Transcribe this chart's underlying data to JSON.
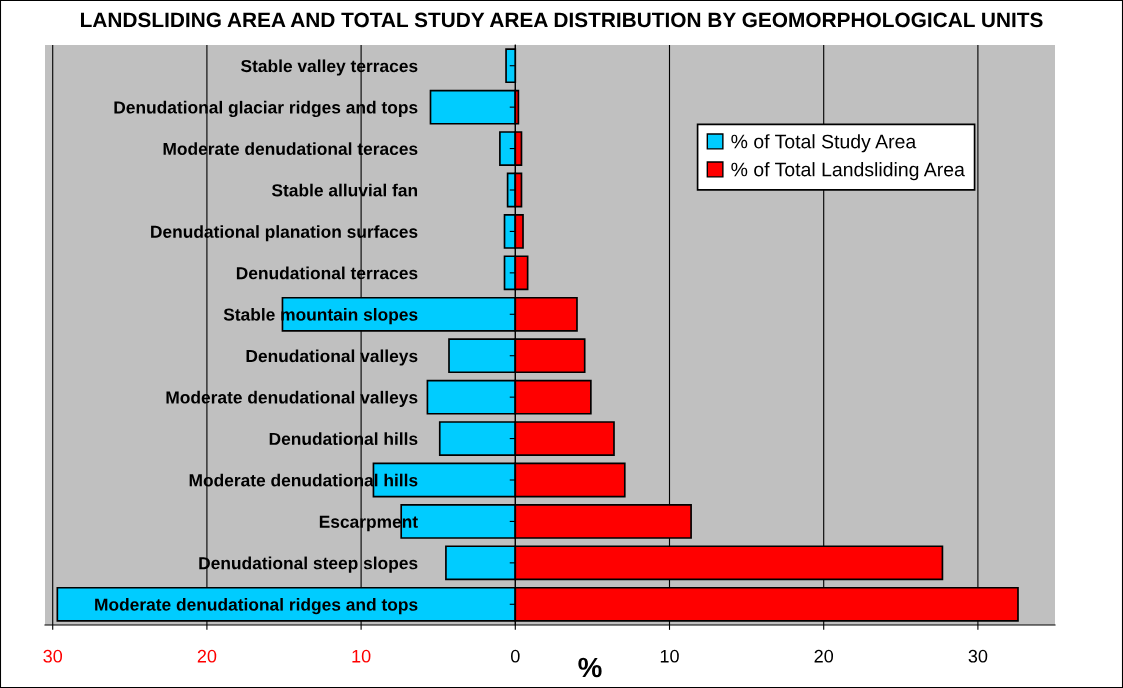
{
  "chart_data": {
    "type": "bar",
    "orientation": "horizontal",
    "title": "LANDSLIDING AREA AND TOTAL STUDY AREA DISTRIBUTION BY GEOMORPHOLOGICAL UNITS",
    "xlabel": "%",
    "categories": [
      "Stable valley terraces",
      "Denudational glaciar ridges and tops",
      "Moderate denudational teraces",
      "Stable alluvial fan",
      "Denudational planation surfaces",
      "Denudational terraces",
      "Stable mountain slopes",
      "Denudational valleys",
      "Moderate denudational valleys",
      "Denudational hills",
      "Moderate denudational hills",
      "Escarpment",
      "Denudational steep slopes",
      "Moderate denudational ridges and tops"
    ],
    "series": [
      {
        "name": "% of Total Study Area",
        "color": "#00ccff",
        "values": [
          -0.6,
          -5.5,
          -1.0,
          -0.5,
          -0.7,
          -0.7,
          -15.1,
          -4.3,
          -5.7,
          -4.9,
          -9.2,
          -7.4,
          -4.5,
          -29.7
        ]
      },
      {
        "name": "% of Total Landsliding Area",
        "color": "#ff0000",
        "values": [
          null,
          0.2,
          0.4,
          0.4,
          0.5,
          0.8,
          4.0,
          4.5,
          4.9,
          6.4,
          7.1,
          11.4,
          27.7,
          32.6
        ]
      }
    ],
    "xlim": [
      -30.5,
      35
    ],
    "xticks": [
      {
        "value": -30,
        "label": "30"
      },
      {
        "value": -20,
        "label": "20"
      },
      {
        "value": -10,
        "label": "10"
      },
      0,
      10,
      20,
      30
    ],
    "grid": "x",
    "stacked": true,
    "legend": "top right"
  }
}
